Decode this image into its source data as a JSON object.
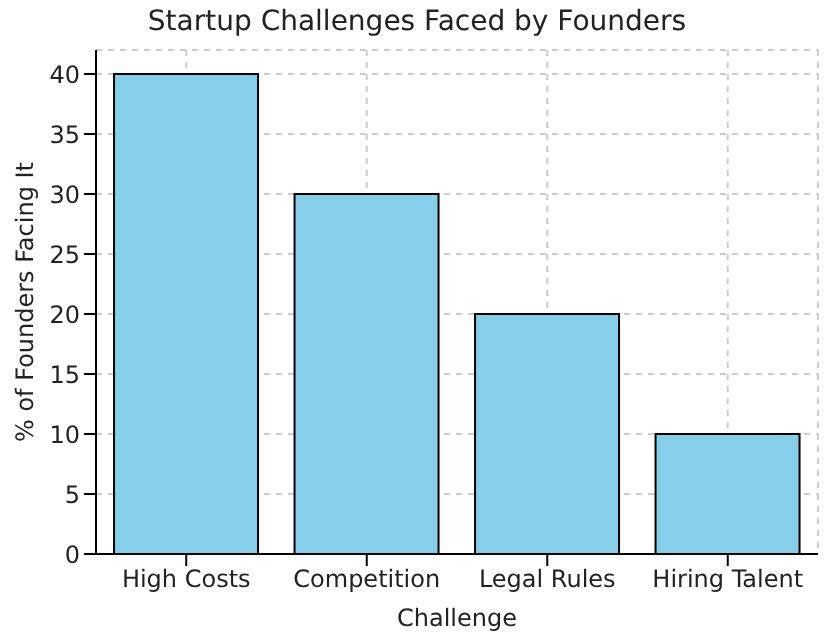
{
  "chart_data": {
    "type": "bar",
    "title": "Startup Challenges Faced by Founders",
    "xlabel": "Challenge",
    "ylabel": "% of Founders Facing It",
    "categories": [
      "High Costs",
      "Competition",
      "Legal Rules",
      "Hiring Talent"
    ],
    "values": [
      40,
      30,
      20,
      10
    ],
    "color": "#87ceeb",
    "ylim": [
      0,
      42
    ],
    "yticks": [
      0,
      5,
      10,
      15,
      20,
      25,
      30,
      35,
      40
    ],
    "grid": true
  }
}
